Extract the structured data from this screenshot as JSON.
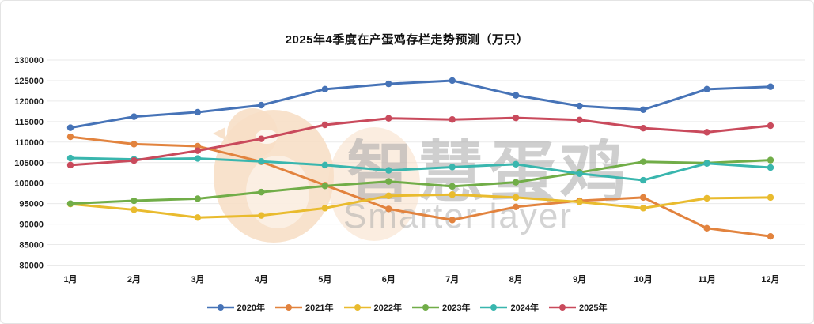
{
  "title": "2025年4季度在产蛋鸡存栏走势预测（万只）",
  "watermark": {
    "line1": "智慧蛋鸡",
    "line2": "Smarter layer",
    "logo": "egg-chick-logo",
    "text_color": "#a8a8a8",
    "logo_color": "#f7dfc7"
  },
  "axis_text_color": "#1a1a1a",
  "gridline_color": "#eaeaea",
  "chart_data": {
    "type": "line",
    "title": "2025年4季度在产蛋鸡存栏走势预测（万只）",
    "xlabel": "",
    "ylabel": "",
    "categories": [
      "1月",
      "2月",
      "3月",
      "4月",
      "5月",
      "6月",
      "7月",
      "8月",
      "9月",
      "10月",
      "11月",
      "12月"
    ],
    "y_axis": {
      "min": 80000,
      "max": 130000,
      "step": 5000
    },
    "grid": true,
    "legend_position": "bottom",
    "marker": "circle",
    "series": [
      {
        "name": "2020年",
        "color": "#4673B7",
        "values": [
          113500,
          116200,
          117300,
          119000,
          122900,
          124200,
          125000,
          121400,
          118800,
          117900,
          122900,
          123500
        ]
      },
      {
        "name": "2021年",
        "color": "#E2833E",
        "values": [
          111300,
          109500,
          109000,
          105200,
          99500,
          93700,
          91000,
          94200,
          95700,
          96500,
          89000,
          87000
        ]
      },
      {
        "name": "2022年",
        "color": "#E9BB2E",
        "values": [
          94900,
          93500,
          91600,
          92100,
          93900,
          96900,
          97200,
          96500,
          95400,
          93900,
          96300,
          96500
        ]
      },
      {
        "name": "2023年",
        "color": "#71AD48",
        "values": [
          95000,
          95700,
          96200,
          97800,
          99300,
          100400,
          99200,
          100200,
          102600,
          105200,
          104900,
          105600
        ]
      },
      {
        "name": "2024年",
        "color": "#39B6AE",
        "values": [
          106100,
          105800,
          106000,
          105300,
          104400,
          103100,
          103900,
          104600,
          102300,
          100700,
          104800,
          103800
        ]
      },
      {
        "name": "2025年",
        "color": "#C94A5C",
        "values": [
          104400,
          105500,
          107900,
          110800,
          114200,
          115800,
          115500,
          115900,
          115400,
          113400,
          112400,
          114000
        ]
      }
    ]
  }
}
